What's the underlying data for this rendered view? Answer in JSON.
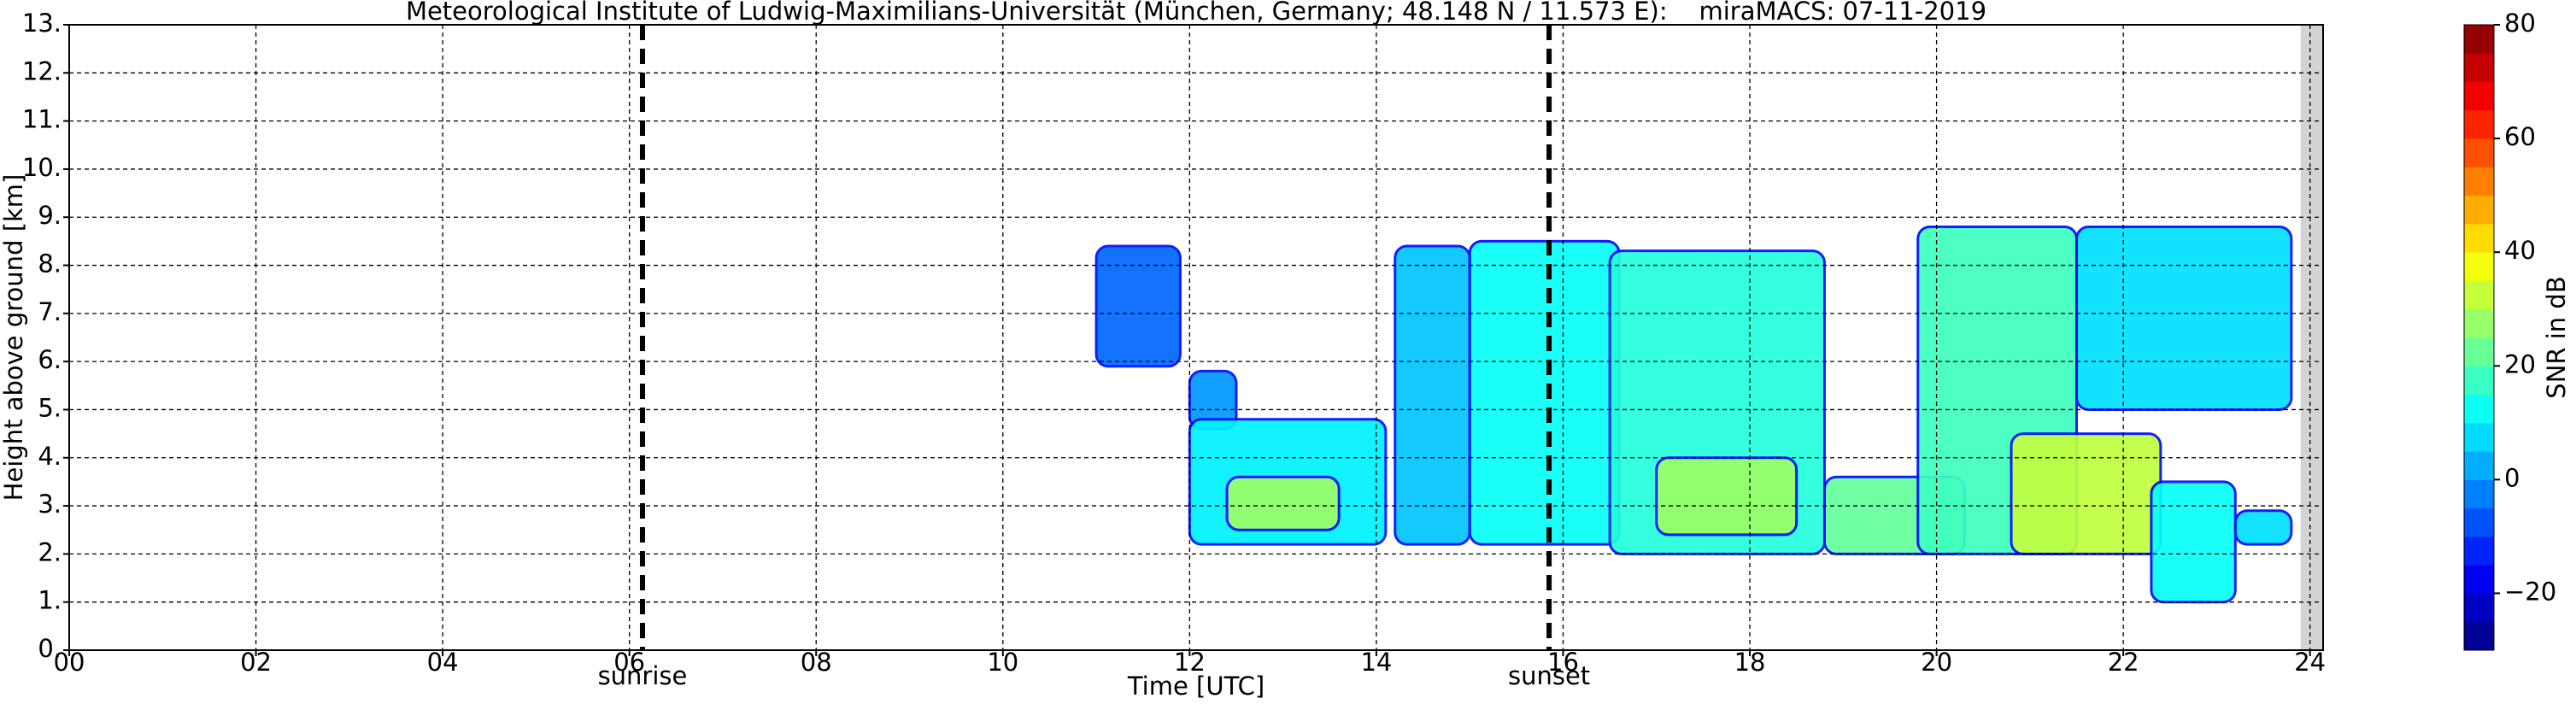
{
  "chart_data": {
    "type": "heatmap",
    "title": "Meteorological Institute of Ludwig-Maximilians-Universität (München, Germany; 48.148 N / 11.573 E):    miraMACS: 07-11-2019",
    "xlabel": "Time [UTC]",
    "ylabel": "Height above ground [km]",
    "xlim": [
      0,
      24.14
    ],
    "ylim": [
      0,
      13
    ],
    "xticks": [
      {
        "value": 0,
        "label": "00"
      },
      {
        "value": 2,
        "label": "02"
      },
      {
        "value": 4,
        "label": "04"
      },
      {
        "value": 6,
        "label": "06"
      },
      {
        "value": 8,
        "label": "08"
      },
      10,
      12,
      14,
      16,
      18,
      20,
      22,
      24
    ],
    "yticks": [
      {
        "value": 0,
        "label": "0."
      },
      {
        "value": 1,
        "label": "1."
      },
      {
        "value": 2,
        "label": "2."
      },
      {
        "value": 3,
        "label": "3."
      },
      {
        "value": 4,
        "label": "4."
      },
      {
        "value": 5,
        "label": "5."
      },
      {
        "value": 6,
        "label": "6."
      },
      {
        "value": 7,
        "label": "7."
      },
      {
        "value": 8,
        "label": "8."
      },
      {
        "value": 9,
        "label": "9."
      },
      {
        "value": 10,
        "label": "10."
      },
      {
        "value": 11,
        "label": "11."
      },
      {
        "value": 12,
        "label": "12."
      },
      {
        "value": 13,
        "label": "13."
      }
    ],
    "grid": true,
    "colormap": "jet",
    "colorbar": {
      "label": "SNR in dB",
      "lim": [
        -30,
        80
      ],
      "ticks": [
        {
          "value": -20,
          "label": "−20"
        },
        0,
        20,
        40,
        60,
        80
      ]
    },
    "markers": [
      {
        "name": "sunrise",
        "x": 6.14
      },
      {
        "name": "sunset",
        "x": 15.85
      }
    ],
    "data_end": 23.9,
    "echoes": [
      {
        "x": [
          11.0,
          11.9
        ],
        "y": [
          5.9,
          8.4
        ],
        "snr": -5
      },
      {
        "x": [
          12.0,
          12.5
        ],
        "y": [
          4.6,
          5.8
        ],
        "snr": 0
      },
      {
        "x": [
          12.0,
          14.1
        ],
        "y": [
          2.2,
          4.8
        ],
        "snr": 10
      },
      {
        "x": [
          12.4,
          13.6
        ],
        "y": [
          2.5,
          3.6
        ],
        "snr": 28
      },
      {
        "x": [
          14.2,
          15.0
        ],
        "y": [
          2.2,
          8.4
        ],
        "snr": 5
      },
      {
        "x": [
          15.0,
          16.6
        ],
        "y": [
          2.2,
          8.5
        ],
        "snr": 12
      },
      {
        "x": [
          16.5,
          18.8
        ],
        "y": [
          2.0,
          8.3
        ],
        "snr": 15
      },
      {
        "x": [
          17.0,
          18.5
        ],
        "y": [
          2.4,
          4.0
        ],
        "snr": 28
      },
      {
        "x": [
          18.8,
          20.3
        ],
        "y": [
          2.0,
          3.6
        ],
        "snr": 22
      },
      {
        "x": [
          19.8,
          21.5
        ],
        "y": [
          2.0,
          8.8
        ],
        "snr": 18
      },
      {
        "x": [
          21.5,
          23.8
        ],
        "y": [
          5.0,
          8.8
        ],
        "snr": 8
      },
      {
        "x": [
          20.8,
          22.4
        ],
        "y": [
          2.0,
          4.5
        ],
        "snr": 32
      },
      {
        "x": [
          22.3,
          23.2
        ],
        "y": [
          1.0,
          3.5
        ],
        "snr": 12
      },
      {
        "x": [
          23.2,
          23.8
        ],
        "y": [
          2.2,
          2.9
        ],
        "snr": 8
      }
    ]
  }
}
